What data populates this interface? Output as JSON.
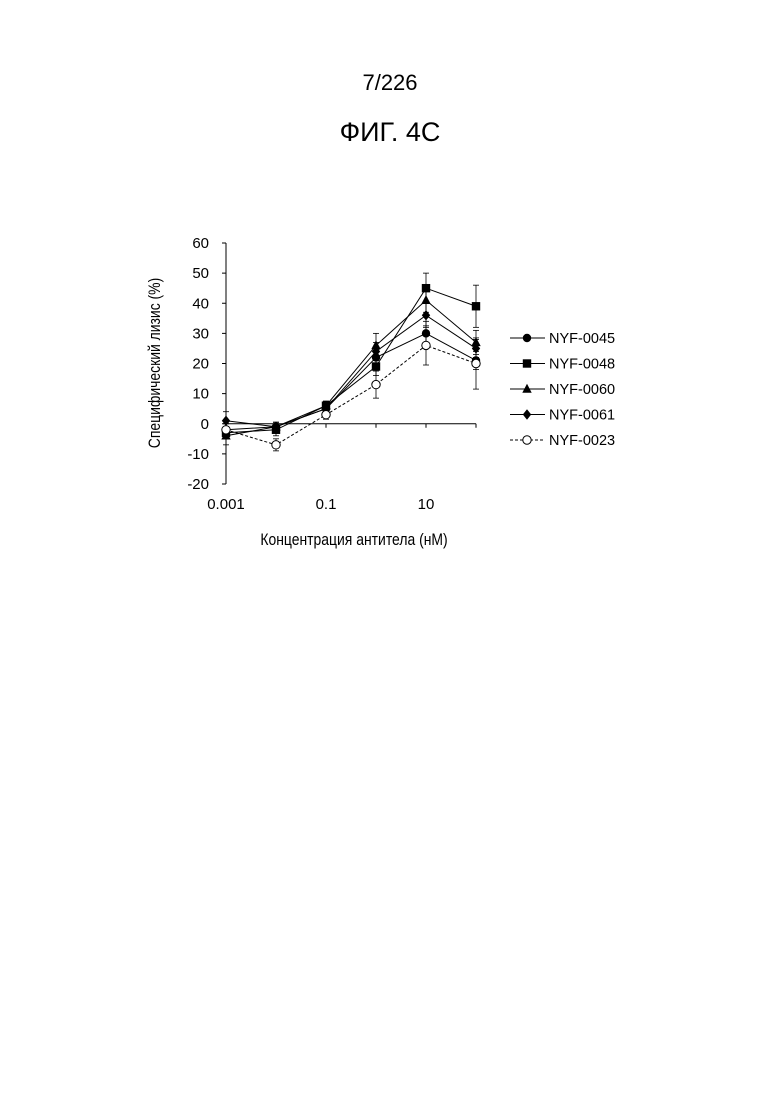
{
  "header": {
    "page_number": "7/226",
    "figure_title": "ФИГ. 4С"
  },
  "chart_data": {
    "type": "line",
    "xlabel": "Концентрация антитела (нМ)",
    "ylabel": "Специфический лизис (%)",
    "x_scale": "log",
    "x": [
      0.001,
      0.01,
      0.1,
      1,
      10,
      100
    ],
    "x_tick_labels": [
      "0.001",
      "0.1",
      "10"
    ],
    "x_tick_values": [
      0.001,
      0.1,
      10
    ],
    "ylim": [
      -20,
      60
    ],
    "y_ticks": [
      -20,
      -10,
      0,
      10,
      20,
      30,
      40,
      50,
      60
    ],
    "grid": false,
    "legend_position": "right",
    "series": [
      {
        "name": "NYF-0045",
        "marker": "circle-filled",
        "line": "solid",
        "values": [
          -2,
          -1,
          5,
          22,
          30,
          21
        ],
        "errors": [
          2,
          1.5,
          1.5,
          2,
          4,
          3
        ]
      },
      {
        "name": "NYF-0048",
        "marker": "square-filled",
        "line": "solid",
        "values": [
          -3,
          -2,
          6,
          19,
          45,
          39
        ],
        "errors": [
          2,
          2,
          1.5,
          3,
          5,
          7
        ]
      },
      {
        "name": "NYF-0060",
        "marker": "triangle-filled",
        "line": "solid",
        "values": [
          -4,
          -1,
          6,
          26,
          41,
          27
        ],
        "errors": [
          3,
          1.5,
          1.5,
          4,
          4,
          4
        ]
      },
      {
        "name": "NYF-0061",
        "marker": "diamond-filled",
        "line": "solid",
        "values": [
          1,
          -1,
          5,
          24,
          36,
          25
        ],
        "errors": [
          3,
          1.5,
          1.5,
          3,
          4,
          3
        ]
      },
      {
        "name": "NYF-0023",
        "marker": "circle-open",
        "line": "dashed",
        "values": [
          -2,
          -7,
          3,
          13,
          26,
          20
        ],
        "errors": [
          2,
          2,
          1.5,
          4.5,
          6.5,
          8.5
        ]
      }
    ]
  }
}
